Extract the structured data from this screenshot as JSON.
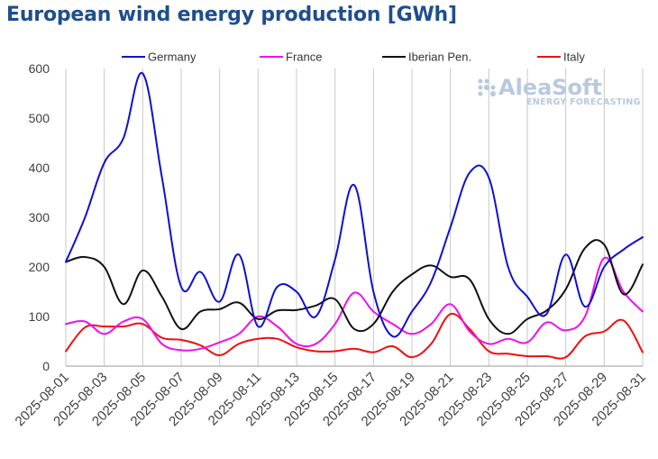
{
  "title": "European wind energy production [GWh]",
  "watermark": {
    "brand": "AleaSoft",
    "tagline": "ENERGY FORECASTING"
  },
  "chart_data": {
    "type": "line",
    "title": "European wind energy production [GWh]",
    "xlabel": "",
    "ylabel": "",
    "ylim": [
      0,
      600
    ],
    "yticks": [
      0,
      100,
      200,
      300,
      400,
      500,
      600
    ],
    "grid": "vertical",
    "legend_position": "top",
    "x": [
      "2025-08-01",
      "2025-08-02",
      "2025-08-03",
      "2025-08-04",
      "2025-08-05",
      "2025-08-06",
      "2025-08-07",
      "2025-08-08",
      "2025-08-09",
      "2025-08-10",
      "2025-08-11",
      "2025-08-12",
      "2025-08-13",
      "2025-08-14",
      "2025-08-15",
      "2025-08-16",
      "2025-08-17",
      "2025-08-18",
      "2025-08-19",
      "2025-08-20",
      "2025-08-21",
      "2025-08-22",
      "2025-08-23",
      "2025-08-24",
      "2025-08-25",
      "2025-08-26",
      "2025-08-27",
      "2025-08-28",
      "2025-08-29",
      "2025-08-30",
      "2025-08-31"
    ],
    "xtick_labels": [
      "2025-08-01",
      "2025-08-03",
      "2025-08-05",
      "2025-08-07",
      "2025-08-09",
      "2025-08-11",
      "2025-08-13",
      "2025-08-15",
      "2025-08-17",
      "2025-08-19",
      "2025-08-21",
      "2025-08-23",
      "2025-08-25",
      "2025-08-27",
      "2025-08-29",
      "2025-08-31"
    ],
    "series": [
      {
        "name": "Germany",
        "color": "#1010d0",
        "values": [
          210,
          300,
          410,
          460,
          590,
          380,
          160,
          190,
          130,
          225,
          80,
          160,
          150,
          100,
          215,
          365,
          150,
          60,
          110,
          170,
          280,
          390,
          380,
          200,
          140,
          105,
          225,
          120,
          200,
          235,
          260
        ]
      },
      {
        "name": "France",
        "color": "#ee10ee",
        "values": [
          85,
          90,
          65,
          90,
          95,
          45,
          32,
          35,
          48,
          65,
          100,
          80,
          45,
          45,
          85,
          148,
          110,
          85,
          65,
          85,
          125,
          70,
          45,
          55,
          48,
          88,
          72,
          100,
          218,
          150,
          110
        ]
      },
      {
        "name": "Iberian Pen.",
        "color": "#111111",
        "values": [
          210,
          220,
          200,
          125,
          193,
          140,
          75,
          110,
          115,
          128,
          95,
          112,
          113,
          122,
          135,
          75,
          85,
          150,
          185,
          203,
          180,
          175,
          95,
          65,
          95,
          112,
          155,
          238,
          245,
          145,
          205
        ]
      },
      {
        "name": "Italy",
        "color": "#ee1010",
        "values": [
          30,
          78,
          80,
          80,
          85,
          57,
          53,
          42,
          22,
          45,
          55,
          55,
          38,
          30,
          30,
          35,
          28,
          40,
          18,
          45,
          105,
          75,
          30,
          25,
          20,
          20,
          18,
          60,
          70,
          92,
          28
        ]
      }
    ]
  }
}
